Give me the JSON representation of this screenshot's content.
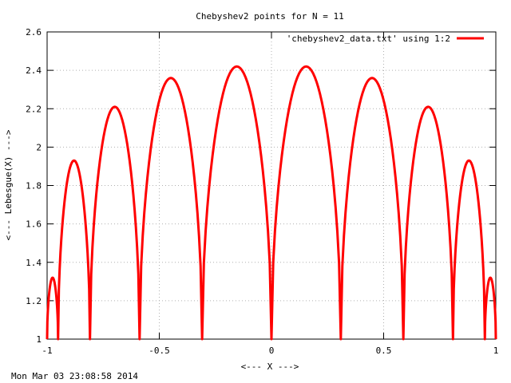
{
  "chart_data": {
    "type": "line",
    "title": "Chebyshev2 points for N = 11",
    "xlabel": "<--- X --->",
    "ylabel": "<--- Lebesgue(X) --->",
    "xlim": [
      -1,
      1
    ],
    "ylim": [
      1,
      2.6
    ],
    "x_ticks": [
      -1,
      -0.5,
      0,
      0.5,
      1
    ],
    "x_tick_labels": [
      "-1",
      "-0.5",
      "0",
      "0.5",
      "1"
    ],
    "y_ticks": [
      1,
      1.2,
      1.4,
      1.6,
      1.8,
      2,
      2.2,
      2.4,
      2.6
    ],
    "y_tick_labels": [
      "1",
      "1.2",
      "1.4",
      "1.6",
      "1.8",
      "2",
      "2.2",
      "2.4",
      "2.6"
    ],
    "grid": true,
    "legend_position": "top-right",
    "timestamp": "Mon Mar 03 23:08:58 2014",
    "series": [
      {
        "name": "'chebyshev2_data.txt' using 1:2",
        "color": "#ff0000",
        "nodes": [
          -1,
          -0.9511,
          -0.809,
          -0.5878,
          -0.309,
          0,
          0.309,
          0.5878,
          0.809,
          0.9511,
          1
        ],
        "peaks": [
          {
            "x": -0.979,
            "y": 1.32
          },
          {
            "x": -0.883,
            "y": 1.93
          },
          {
            "x": -0.701,
            "y": 2.21
          },
          {
            "x": -0.452,
            "y": 2.36
          },
          {
            "x": -0.156,
            "y": 2.42
          },
          {
            "x": 0.156,
            "y": 2.42
          },
          {
            "x": 0.452,
            "y": 2.36
          },
          {
            "x": 0.701,
            "y": 2.21
          },
          {
            "x": 0.883,
            "y": 1.93
          },
          {
            "x": 0.979,
            "y": 1.32
          }
        ]
      }
    ]
  }
}
